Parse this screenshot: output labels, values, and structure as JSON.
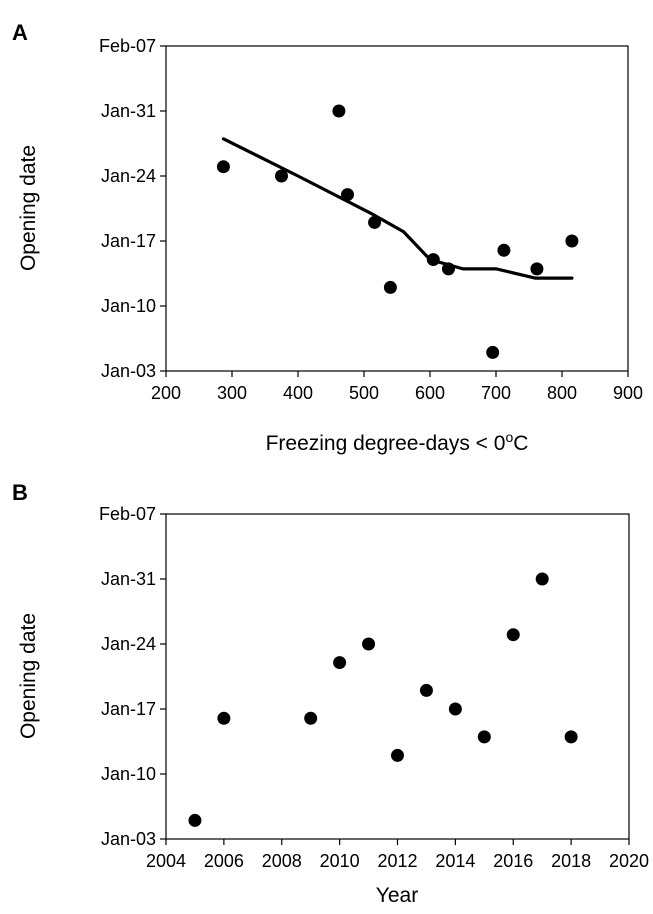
{
  "chart_data": [
    {
      "type": "scatter",
      "panel": "A",
      "xlabel": "Freezing degree-days < 0",
      "xlabel_sup": "o",
      "xlabel_unit": "C",
      "ylabel": "Opening date",
      "xlim": [
        200,
        900
      ],
      "xticks": [
        "200",
        "300",
        "400",
        "500",
        "600",
        "700",
        "800",
        "900"
      ],
      "ylim": [
        "2000-01-03",
        "2000-02-07"
      ],
      "yticks": [
        "Jan-03",
        "Jan-10",
        "Jan-17",
        "Jan-24",
        "Jan-31",
        "Feb-07"
      ],
      "grid": false,
      "points": [
        {
          "x": 287,
          "y": "2000-01-25"
        },
        {
          "x": 375,
          "y": "2000-01-24"
        },
        {
          "x": 462,
          "y": "2000-01-31"
        },
        {
          "x": 475,
          "y": "2000-01-22"
        },
        {
          "x": 516,
          "y": "2000-01-19"
        },
        {
          "x": 540,
          "y": "2000-01-12"
        },
        {
          "x": 605,
          "y": "2000-01-15"
        },
        {
          "x": 628,
          "y": "2000-01-14"
        },
        {
          "x": 695,
          "y": "2000-01-05"
        },
        {
          "x": 712,
          "y": "2000-01-16"
        },
        {
          "x": 762,
          "y": "2000-01-14"
        },
        {
          "x": 815,
          "y": "2000-01-17"
        }
      ],
      "trend_line": [
        {
          "x": 287,
          "y": "2000-01-28"
        },
        {
          "x": 400,
          "y": "2000-01-24"
        },
        {
          "x": 510,
          "y": "2000-01-20"
        },
        {
          "x": 560,
          "y": "2000-01-18"
        },
        {
          "x": 600,
          "y": "2000-01-15"
        },
        {
          "x": 650,
          "y": "2000-01-14"
        },
        {
          "x": 700,
          "y": "2000-01-14"
        },
        {
          "x": 760,
          "y": "2000-01-13"
        },
        {
          "x": 815,
          "y": "2000-01-13"
        }
      ]
    },
    {
      "type": "scatter",
      "panel": "B",
      "xlabel": "Year",
      "ylabel": "Opening date",
      "xlim": [
        2004,
        2020
      ],
      "xticks": [
        "2004",
        "2006",
        "2008",
        "2010",
        "2012",
        "2014",
        "2016",
        "2018",
        "2020"
      ],
      "ylim": [
        "2000-01-03",
        "2000-02-07"
      ],
      "yticks": [
        "Jan-03",
        "Jan-10",
        "Jan-17",
        "Jan-24",
        "Jan-31",
        "Feb-07"
      ],
      "grid": false,
      "points": [
        {
          "x": 2005,
          "y": "2000-01-05"
        },
        {
          "x": 2006,
          "y": "2000-01-16"
        },
        {
          "x": 2009,
          "y": "2000-01-16"
        },
        {
          "x": 2010,
          "y": "2000-01-22"
        },
        {
          "x": 2011,
          "y": "2000-01-24"
        },
        {
          "x": 2012,
          "y": "2000-01-12"
        },
        {
          "x": 2013,
          "y": "2000-01-19"
        },
        {
          "x": 2014,
          "y": "2000-01-17"
        },
        {
          "x": 2015,
          "y": "2000-01-14"
        },
        {
          "x": 2016,
          "y": "2000-01-25"
        },
        {
          "x": 2017,
          "y": "2000-01-31"
        },
        {
          "x": 2018,
          "y": "2000-01-14"
        }
      ]
    }
  ]
}
